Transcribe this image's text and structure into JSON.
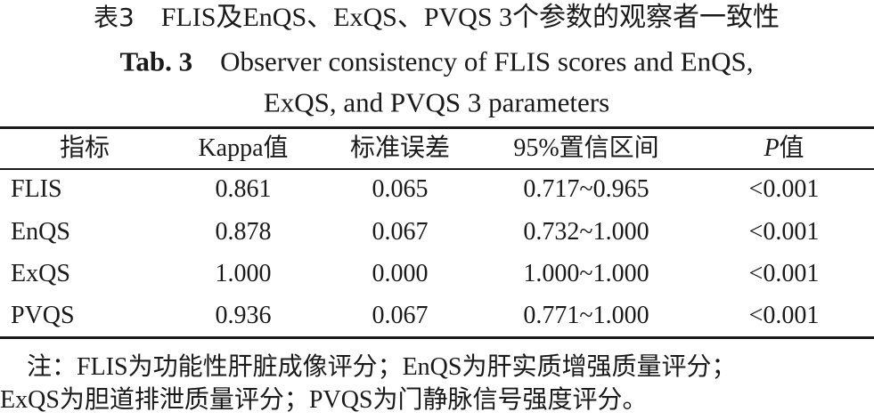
{
  "caption": {
    "cn_label": "表3",
    "cn": "FLIS及EnQS、ExQS、PVQS 3个参数的观察者一致性",
    "en_label": "Tab. 3",
    "en": [
      "Observer consistency of FLIS scores and EnQS,",
      "ExQS, and PVQS 3 parameters"
    ]
  },
  "table": {
    "header": [
      "指标",
      "Kappa值",
      "标准误差",
      "95%置信区间",
      [
        "P",
        "值"
      ]
    ],
    "rows": [
      [
        "FLIS",
        "0.861",
        "0.065",
        "0.717~0.965",
        "<0.001"
      ],
      [
        "EnQS",
        "0.878",
        "0.067",
        "0.732~1.000",
        "<0.001"
      ],
      [
        "ExQS",
        "1.000",
        "0.000",
        "1.000~1.000",
        "<0.001"
      ],
      [
        "PVQS",
        "0.936",
        "0.067",
        "0.771~1.000",
        "<0.001"
      ]
    ]
  },
  "note": [
    "注：FLIS为功能性肝脏成像评分；EnQS为肝实质增强质量评分；",
    "ExQS为胆道排泄质量评分；PVQS为门静脉信号强度评分。"
  ]
}
